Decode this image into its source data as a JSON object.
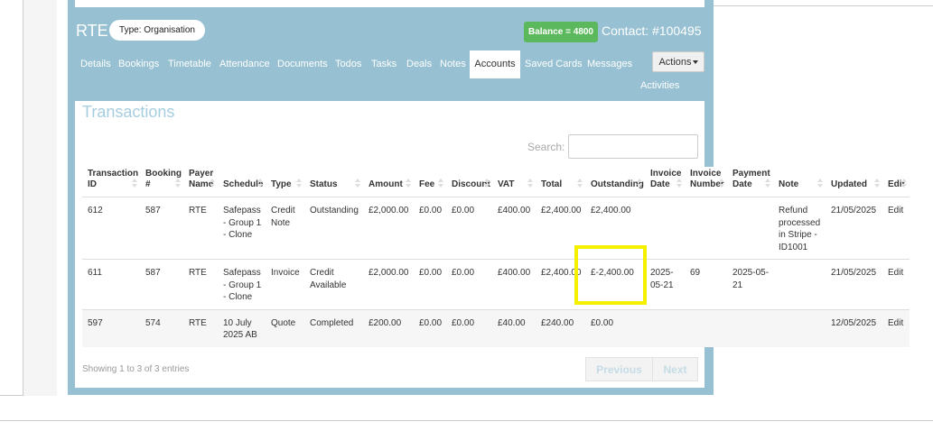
{
  "header": {
    "name": "RTE",
    "type_badge": "Type: Organisation",
    "balance": "Balance = 4800",
    "contact": "Contact: #100495"
  },
  "tabs": [
    {
      "label": "Details"
    },
    {
      "label": "Bookings"
    },
    {
      "label": "Timetable"
    },
    {
      "label": "Attendance"
    },
    {
      "label": "Documents"
    },
    {
      "label": "Todos"
    },
    {
      "label": "Tasks"
    },
    {
      "label": "Deals"
    },
    {
      "label": "Notes"
    },
    {
      "label": "Accounts",
      "active": true
    },
    {
      "label": "Saved Cards"
    },
    {
      "label": "Messages"
    }
  ],
  "actions_button": "Actions",
  "activities": "Activities",
  "panel": {
    "title": "Transactions",
    "search_label": "Search:"
  },
  "table": {
    "columns": [
      "Transaction ID",
      "Booking #",
      "Payer Name",
      "Schedule",
      "Type",
      "Status",
      "Amount",
      "Fee",
      "Discount",
      "VAT",
      "Total",
      "Outstanding",
      "Invoice Date",
      "Invoice Number",
      "Payment Date",
      "Note",
      "Updated",
      "Edit"
    ],
    "rows": [
      [
        "612",
        "587",
        "RTE",
        "Safepass - Group 1 - Clone",
        "Credit Note",
        "Outstanding",
        "£2,000.00",
        "£0.00",
        "£0.00",
        "£400.00",
        "£2,400.00",
        "£2,400.00",
        null,
        null,
        null,
        "Refund processed in Stripe - ID1001",
        "21/05/2025",
        "Edit"
      ],
      [
        "611",
        "587",
        "RTE",
        "Safepass - Group 1 - Clone",
        "Invoice",
        "Credit Available",
        "£2,000.00",
        "£0.00",
        "£0.00",
        "£400.00",
        "£2,400.00",
        "£-2,400.00",
        "2025-05-21",
        "69",
        "2025-05-21",
        null,
        "21/05/2025",
        "Edit"
      ],
      [
        "597",
        "574",
        "RTE",
        "10 July 2025 AB",
        "Quote",
        "Completed",
        "£200.00",
        "£0.00",
        "£0.00",
        "£40.00",
        "£240.00",
        "£0.00",
        null,
        null,
        null,
        null,
        "12/05/2025",
        "Edit"
      ]
    ]
  },
  "footer": {
    "info": "Showing 1 to 3 of 3 entries",
    "previous": "Previous",
    "next": "Next"
  }
}
